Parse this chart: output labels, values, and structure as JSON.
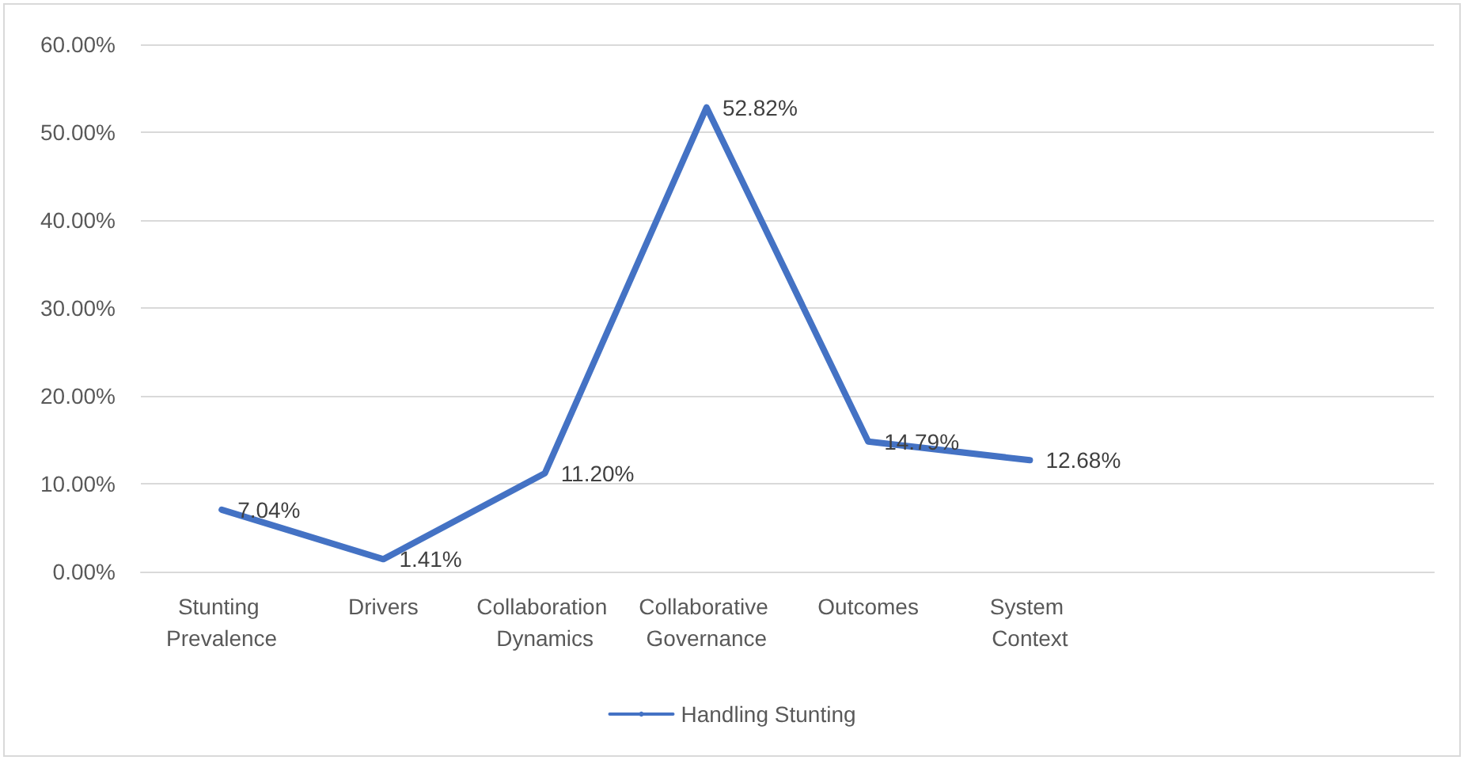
{
  "chart_data": {
    "type": "line",
    "categories": [
      "Stunting Prevalence",
      "Drivers",
      "Collaboration Dynamics",
      "Collaborative Governance",
      "Outcomes",
      "System Context",
      null,
      null
    ],
    "series": [
      {
        "name": "Handling Stunting",
        "color": "#4472c4",
        "values": [
          7.04,
          1.41,
          11.2,
          52.82,
          14.79,
          12.68,
          null,
          null
        ],
        "value_labels": [
          "7.04%",
          "1.41%",
          "11.20%",
          "52.82%",
          "14.79%",
          "12.68%",
          null,
          null
        ]
      }
    ],
    "ylim": [
      0,
      60
    ],
    "yticks": [
      {
        "value": 0,
        "label": "0.00%"
      },
      {
        "value": 10,
        "label": "10.00%"
      },
      {
        "value": 20,
        "label": "20.00%"
      },
      {
        "value": 30,
        "label": "30.00%"
      },
      {
        "value": 40,
        "label": "40.00%"
      },
      {
        "value": 50,
        "label": "50.00%"
      },
      {
        "value": 60,
        "label": "60.00%"
      }
    ],
    "grid": "y",
    "legend": "bottom",
    "marker": "none",
    "line_style": "solid"
  }
}
